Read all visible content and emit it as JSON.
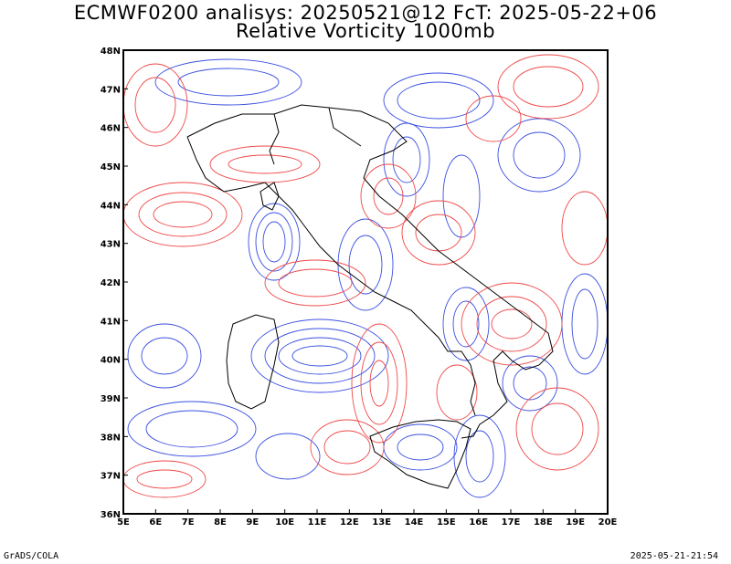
{
  "titles": {
    "line1": "ECMWF0200 analisys: 20250521@12 FcT: 2025-05-22+06",
    "line2": "Relative Vorticity 1000mb"
  },
  "axes": {
    "lon_labels": [
      "5E",
      "6E",
      "7E",
      "8E",
      "9E",
      "10E",
      "11E",
      "12E",
      "13E",
      "14E",
      "15E",
      "16E",
      "17E",
      "18E",
      "19E",
      "20E"
    ],
    "lat_labels": [
      "48N",
      "47N",
      "46N",
      "45N",
      "44N",
      "43N",
      "42N",
      "41N",
      "40N",
      "39N",
      "38N",
      "37N",
      "36N"
    ],
    "lon_range": [
      5,
      20
    ],
    "lat_range": [
      36,
      48
    ]
  },
  "colors": {
    "positive_vorticity": "#3a4fe0",
    "negative_vorticity": "#f04848",
    "coastline": "#000000"
  },
  "footer": {
    "left": "GrADS/COLA",
    "right": "2025-05-21-21:54"
  }
}
